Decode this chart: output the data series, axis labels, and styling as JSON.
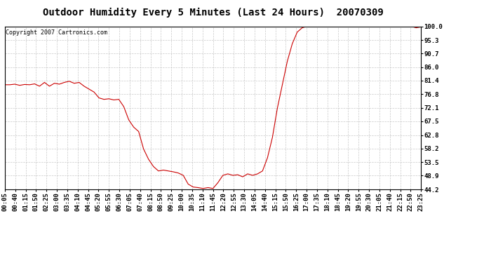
{
  "title": "Outdoor Humidity Every 5 Minutes (Last 24 Hours)  20070309",
  "copyright_text": "Copyright 2007 Cartronics.com",
  "line_color": "#cc0000",
  "background_color": "#ffffff",
  "grid_color": "#bbbbbb",
  "ylim": [
    44.2,
    100.0
  ],
  "yticks": [
    44.2,
    48.9,
    53.5,
    58.2,
    62.8,
    67.5,
    72.1,
    76.8,
    81.4,
    86.0,
    90.7,
    95.3,
    100.0
  ],
  "xtick_labels": [
    "00:05",
    "00:40",
    "01:15",
    "01:50",
    "02:25",
    "03:00",
    "03:35",
    "04:10",
    "04:45",
    "05:20",
    "05:55",
    "06:30",
    "07:05",
    "07:40",
    "08:15",
    "08:50",
    "09:25",
    "10:00",
    "10:35",
    "11:10",
    "11:45",
    "12:20",
    "12:55",
    "13:30",
    "14:05",
    "14:40",
    "15:15",
    "15:50",
    "16:25",
    "17:00",
    "17:35",
    "18:10",
    "18:45",
    "19:20",
    "19:55",
    "20:30",
    "21:05",
    "21:40",
    "22:15",
    "22:50",
    "23:25"
  ],
  "humidity_values": [
    80.0,
    80.0,
    80.2,
    79.8,
    80.1,
    80.0,
    80.3,
    79.5,
    80.8,
    79.5,
    80.5,
    80.2,
    80.8,
    81.2,
    80.5,
    80.8,
    79.5,
    78.5,
    77.5,
    75.5,
    75.0,
    75.2,
    74.8,
    75.0,
    72.5,
    68.0,
    65.5,
    64.0,
    58.0,
    54.5,
    52.0,
    50.5,
    50.8,
    50.5,
    50.2,
    49.8,
    49.0,
    46.0,
    45.0,
    44.8,
    44.5,
    44.8,
    44.5,
    46.5,
    49.0,
    49.5,
    49.0,
    49.2,
    48.5,
    49.5,
    49.0,
    49.5,
    50.5,
    55.0,
    62.0,
    72.0,
    80.0,
    88.0,
    94.0,
    98.0,
    99.5,
    100.0,
    100.0,
    100.0,
    100.0,
    100.0,
    100.0,
    100.0,
    100.0,
    100.0,
    100.0,
    100.0,
    100.0,
    100.0,
    100.0,
    100.0,
    100.0,
    100.0,
    100.0,
    100.0,
    100.0,
    100.0,
    100.0,
    99.5,
    99.8
  ],
  "title_fontsize": 10,
  "copyright_fontsize": 6,
  "tick_fontsize": 6.5,
  "figsize": [
    6.9,
    3.75
  ],
  "dpi": 100
}
